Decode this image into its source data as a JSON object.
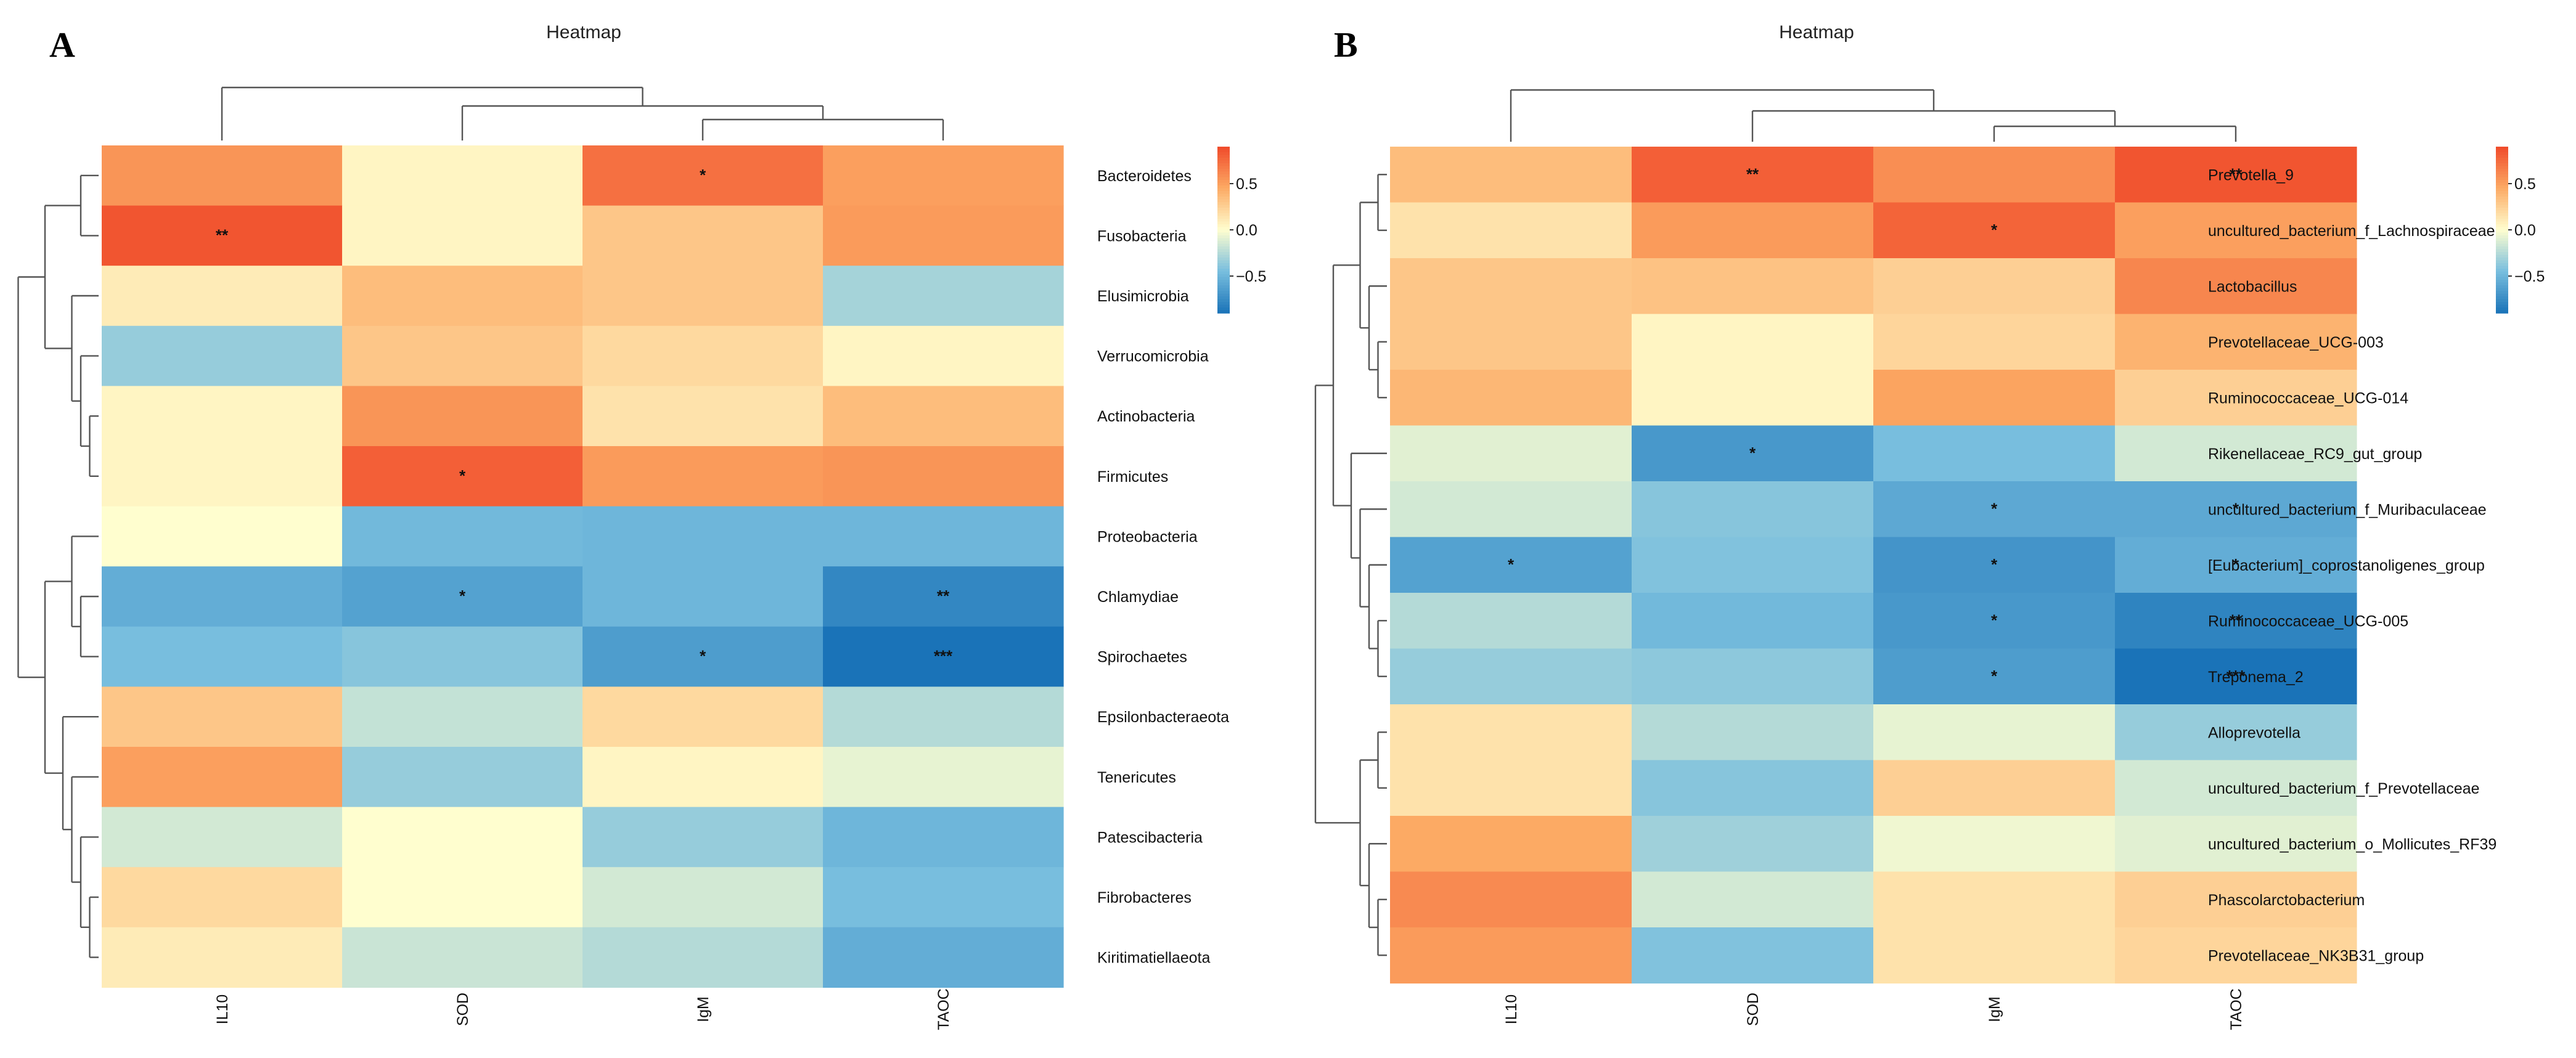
{
  "chart_data": [
    {
      "type": "heatmap",
      "panel": "A",
      "title": "Heatmap",
      "columns": [
        "IL10",
        "SOD",
        "IgM",
        "TAOC"
      ],
      "rows": [
        "Bacteroidetes",
        "Fusobacteria",
        "Elusimicrobia",
        "Verrucomicrobia",
        "Actinobacteria",
        "Firmicutes",
        "Proteobacteria",
        "Chlamydiae",
        "Spirochaetes",
        "Epsilonbacteraeota",
        "Tenericutes",
        "Patescibacteria",
        "Fibrobacteres",
        "Kiritimatiellaeota"
      ],
      "values": [
        [
          0.55,
          0.05,
          0.72,
          0.5
        ],
        [
          0.85,
          0.05,
          0.3,
          0.52
        ],
        [
          0.1,
          0.35,
          0.3,
          -0.3
        ],
        [
          -0.35,
          0.3,
          0.2,
          0.05
        ],
        [
          0.05,
          0.55,
          0.15,
          0.35
        ],
        [
          0.05,
          0.8,
          0.52,
          0.55
        ],
        [
          0.0,
          -0.48,
          -0.5,
          -0.5
        ],
        [
          -0.55,
          -0.62,
          -0.5,
          -0.78
        ],
        [
          -0.45,
          -0.4,
          -0.65,
          -0.9
        ],
        [
          0.3,
          -0.2,
          0.2,
          -0.25
        ],
        [
          0.5,
          -0.35,
          0.05,
          -0.08
        ],
        [
          -0.15,
          0.0,
          -0.35,
          -0.5
        ],
        [
          0.2,
          0.0,
          -0.15,
          -0.45
        ],
        [
          0.1,
          -0.18,
          -0.25,
          -0.55
        ]
      ],
      "significance": [
        [
          "",
          "",
          "*",
          ""
        ],
        [
          "**",
          "",
          "",
          ""
        ],
        [
          "",
          "",
          "",
          ""
        ],
        [
          "",
          "",
          "",
          ""
        ],
        [
          "",
          "",
          "",
          ""
        ],
        [
          "",
          "*",
          "",
          ""
        ],
        [
          "",
          "",
          "",
          ""
        ],
        [
          "",
          "*",
          "",
          "**"
        ],
        [
          "",
          "",
          "*",
          "***"
        ],
        [
          "",
          "",
          "",
          ""
        ],
        [
          "",
          "",
          "",
          ""
        ],
        [
          "",
          "",
          "",
          ""
        ],
        [
          "",
          "",
          "",
          ""
        ],
        [
          "",
          "",
          "",
          ""
        ]
      ],
      "legend": {
        "ticks": [
          0.5,
          0.0,
          -0.5
        ],
        "tick_labels": [
          "0.5",
          "0.0",
          "−0.5"
        ],
        "range": [
          -0.9,
          0.9
        ]
      }
    },
    {
      "type": "heatmap",
      "panel": "B",
      "title": "Heatmap",
      "columns": [
        "IL10",
        "SOD",
        "IgM",
        "TAOC"
      ],
      "rows": [
        "Prevotella_9",
        "uncultured_bacterium_f_Lachnospiraceae",
        "Lactobacillus",
        "Prevotellaceae_UCG-003",
        "Ruminococcaceae_UCG-014",
        "Rikenellaceae_RC9_gut_group",
        "uncultured_bacterium_f_Muribaculaceae",
        "[Eubacterium]_coprostanoligenes_group",
        "Ruminococcaceae_UCG-005",
        "Treponema_2",
        "Alloprevotella",
        "uncultured_bacterium_f_Prevotellaceae",
        "uncultured_bacterium_o_Mollicutes_RF39",
        "Phascolarctobacterium",
        "Prevotellaceae_NK3B31_group"
      ],
      "values": [
        [
          0.35,
          0.8,
          0.58,
          0.85
        ],
        [
          0.15,
          0.52,
          0.78,
          0.5
        ],
        [
          0.3,
          0.32,
          0.25,
          0.62
        ],
        [
          0.3,
          0.05,
          0.22,
          0.4
        ],
        [
          0.38,
          0.05,
          0.48,
          0.25
        ],
        [
          -0.1,
          -0.68,
          -0.45,
          -0.15
        ],
        [
          -0.15,
          -0.4,
          -0.58,
          -0.58
        ],
        [
          -0.62,
          -0.42,
          -0.7,
          -0.55
        ],
        [
          -0.25,
          -0.48,
          -0.68,
          -0.8
        ],
        [
          -0.35,
          -0.38,
          -0.65,
          -0.92
        ],
        [
          0.15,
          -0.25,
          -0.08,
          -0.35
        ],
        [
          0.15,
          -0.4,
          0.25,
          -0.15
        ],
        [
          0.45,
          -0.32,
          -0.05,
          -0.1
        ],
        [
          0.6,
          -0.15,
          0.15,
          0.25
        ],
        [
          0.52,
          -0.42,
          0.15,
          0.22
        ]
      ],
      "significance": [
        [
          "",
          "**",
          "",
          "**"
        ],
        [
          "",
          "",
          "*",
          ""
        ],
        [
          "",
          "",
          "",
          ""
        ],
        [
          "",
          "",
          "",
          ""
        ],
        [
          "",
          "",
          "",
          ""
        ],
        [
          "",
          "*",
          "",
          ""
        ],
        [
          "",
          "",
          "*",
          "*"
        ],
        [
          "*",
          "",
          "*",
          "*"
        ],
        [
          "",
          "",
          "*",
          "**"
        ],
        [
          "",
          "",
          "*",
          "***"
        ],
        [
          "",
          "",
          "",
          ""
        ],
        [
          "",
          "",
          "",
          ""
        ],
        [
          "",
          "",
          "",
          ""
        ],
        [
          "",
          "",
          "",
          ""
        ],
        [
          "",
          "",
          "",
          ""
        ]
      ],
      "legend": {
        "ticks": [
          0.5,
          0.0,
          -0.5
        ],
        "tick_labels": [
          "0.5",
          "0.0",
          "−0.5"
        ],
        "range": [
          -0.9,
          0.9
        ]
      }
    }
  ],
  "colors": {
    "scale_low": "#1a73b8",
    "scale_mid": "#fffecf",
    "scale_high": "#f04a2a"
  }
}
